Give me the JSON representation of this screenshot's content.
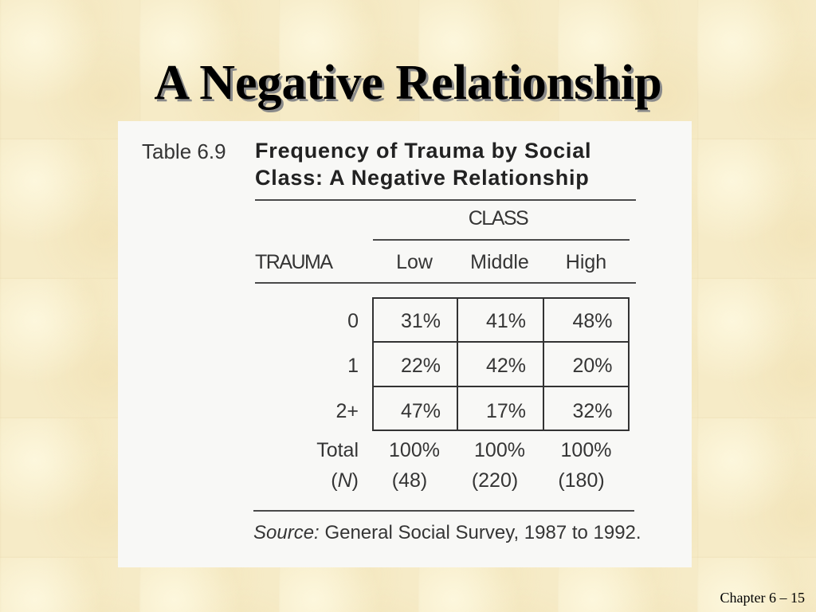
{
  "slide": {
    "title": "A Negative Relationship",
    "footer": "Chapter 6 – 15"
  },
  "table": {
    "number": "Table 6.9",
    "caption": [
      "Frequency of Trauma by Social",
      "Class: A Negative Relationship"
    ],
    "column_group": "CLASS",
    "row_header": "TRAUMA",
    "columns": [
      "Low",
      "Middle",
      "High"
    ],
    "rows": [
      {
        "label": "0",
        "values": [
          "31%",
          "41%",
          "48%"
        ]
      },
      {
        "label": "1",
        "values": [
          "22%",
          "42%",
          "20%"
        ]
      },
      {
        "label": "2+",
        "values": [
          "47%",
          "17%",
          "32%"
        ]
      }
    ],
    "total": {
      "label": "Total",
      "values": [
        "100%",
        "100%",
        "100%"
      ]
    },
    "n": {
      "label": {
        "open": "(",
        "symbol": "N",
        "close": ")"
      },
      "values": [
        "(48)",
        "(220)",
        "(180)"
      ]
    },
    "source": {
      "label": "Source:",
      "text": "General Social Survey, 1987 to 1992."
    }
  },
  "colors": {
    "background": "#f6ebc7",
    "table_background": "#f8f8f6",
    "title": "#000000",
    "title_shadow": "#8a8a8a"
  }
}
